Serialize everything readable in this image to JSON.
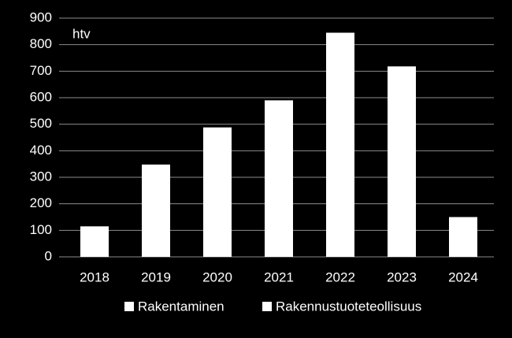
{
  "chart_data": {
    "type": "bar",
    "stacked": true,
    "annotation": "htv",
    "categories": [
      "2018",
      "2019",
      "2020",
      "2021",
      "2022",
      "2023",
      "2024"
    ],
    "series": [
      {
        "name": "Rakentaminen",
        "color": "#ffffff",
        "values": [
          115,
          348,
          488,
          590,
          845,
          718,
          150
        ]
      },
      {
        "name": "Rakennustuoteteollisuus",
        "color": "#ffffff",
        "values": [
          null,
          null,
          null,
          null,
          null,
          null,
          null
        ]
      }
    ],
    "ylim": [
      0,
      900
    ],
    "yticks": [
      0,
      100,
      200,
      300,
      400,
      500,
      600,
      700,
      800,
      900
    ],
    "grid": true,
    "background": "#000000",
    "legend": "bottom"
  }
}
